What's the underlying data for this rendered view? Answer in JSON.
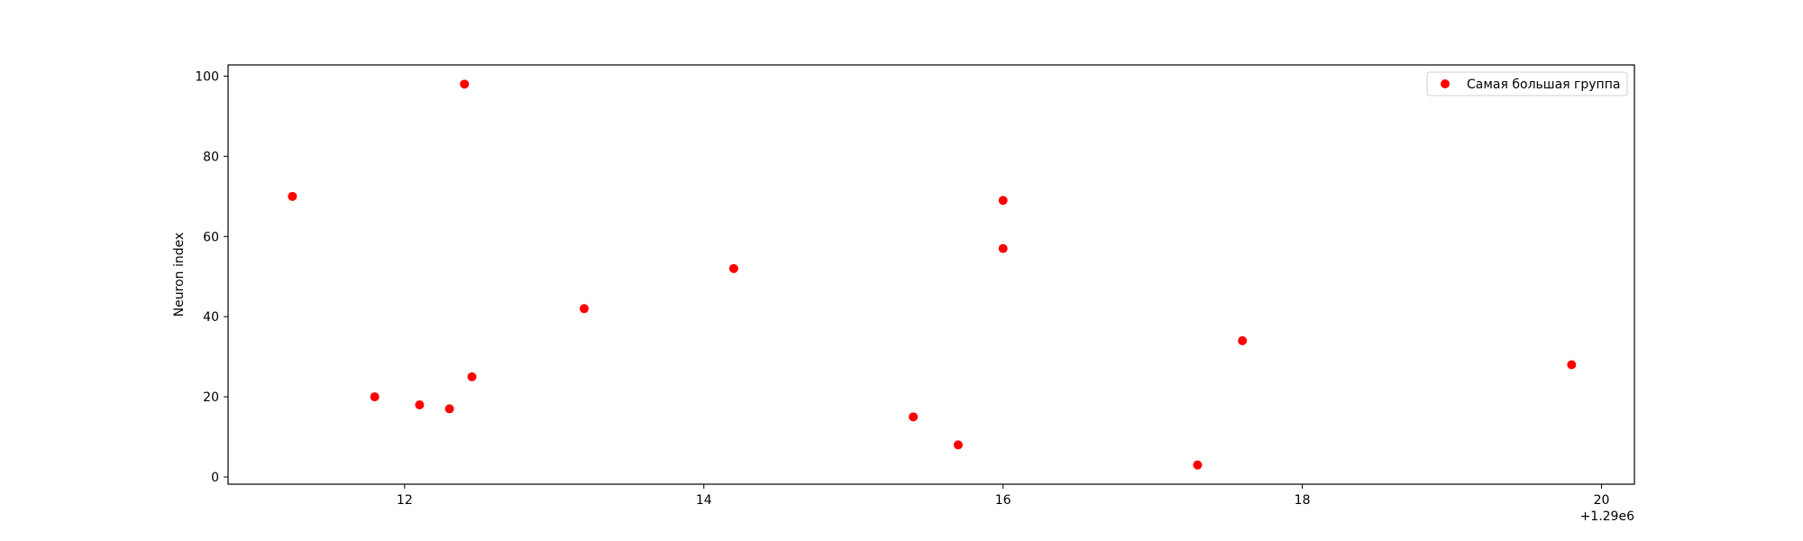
{
  "chart_data": {
    "type": "scatter",
    "title": "",
    "xlabel": "",
    "ylabel": "Neuron index",
    "x_offset_label": "+1.29e6",
    "xlim": [
      10.82,
      20.22
    ],
    "ylim": [
      -1.8,
      102.8
    ],
    "xticks": [
      12,
      14,
      16,
      18,
      20
    ],
    "xtick_labels": [
      "12",
      "14",
      "16",
      "18",
      "20"
    ],
    "yticks": [
      0,
      20,
      40,
      60,
      80,
      100
    ],
    "ytick_labels": [
      "0",
      "20",
      "40",
      "60",
      "80",
      "100"
    ],
    "grid": false,
    "legend_position": "top-right",
    "series": [
      {
        "name": "Самая большая группа",
        "color": "#ff0000",
        "points": [
          {
            "x": 11.25,
            "y": 70
          },
          {
            "x": 11.8,
            "y": 20
          },
          {
            "x": 12.1,
            "y": 18
          },
          {
            "x": 12.3,
            "y": 17
          },
          {
            "x": 12.4,
            "y": 98
          },
          {
            "x": 12.45,
            "y": 25
          },
          {
            "x": 13.2,
            "y": 42
          },
          {
            "x": 14.2,
            "y": 52
          },
          {
            "x": 15.4,
            "y": 15
          },
          {
            "x": 15.7,
            "y": 8
          },
          {
            "x": 16.0,
            "y": 69
          },
          {
            "x": 16.0,
            "y": 57
          },
          {
            "x": 17.3,
            "y": 3
          },
          {
            "x": 17.6,
            "y": 34
          },
          {
            "x": 19.8,
            "y": 28
          }
        ]
      }
    ]
  }
}
